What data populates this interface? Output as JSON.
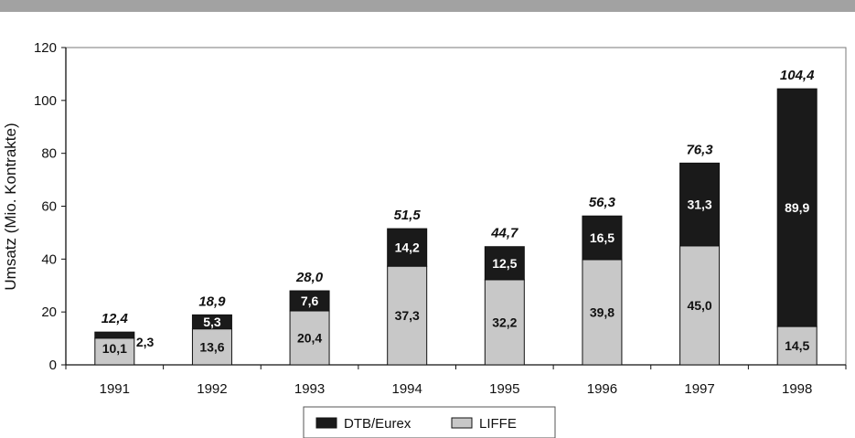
{
  "chart_data": {
    "type": "bar",
    "stacked": true,
    "title": "",
    "xlabel": "",
    "ylabel": "Umsatz (Mio. Kontrakte)",
    "ylim": [
      0,
      120
    ],
    "yticks": [
      0,
      20,
      40,
      60,
      80,
      100,
      120
    ],
    "grid": false,
    "legend_position": "bottom",
    "categories": [
      "1991",
      "1992",
      "1993",
      "1994",
      "1995",
      "1996",
      "1997",
      "1998"
    ],
    "series": [
      {
        "name": "LIFFE",
        "color": "#c8c8c8",
        "values": [
          10.1,
          13.6,
          20.4,
          37.3,
          32.2,
          39.8,
          45.0,
          14.5
        ],
        "labels": [
          "10,1",
          "13,6",
          "20,4",
          "37,3",
          "32,2",
          "39,8",
          "45,0",
          "14,5"
        ]
      },
      {
        "name": "DTB/Eurex",
        "color": "#1a1a1a",
        "values": [
          2.3,
          5.3,
          7.6,
          14.2,
          12.5,
          16.5,
          31.3,
          89.9
        ],
        "labels": [
          "2,3",
          "5,3",
          "7,6",
          "14,2",
          "12,5",
          "16,5",
          "31,3",
          "89,9"
        ]
      }
    ],
    "totals": [
      12.4,
      18.9,
      28.0,
      51.5,
      44.7,
      56.3,
      76.3,
      104.4
    ],
    "total_labels": [
      "12,4",
      "18,9",
      "28,0",
      "51,5",
      "44,7",
      "56,3",
      "76,3",
      "104,4"
    ],
    "legend_order": [
      "DTB/Eurex",
      "LIFFE"
    ]
  }
}
